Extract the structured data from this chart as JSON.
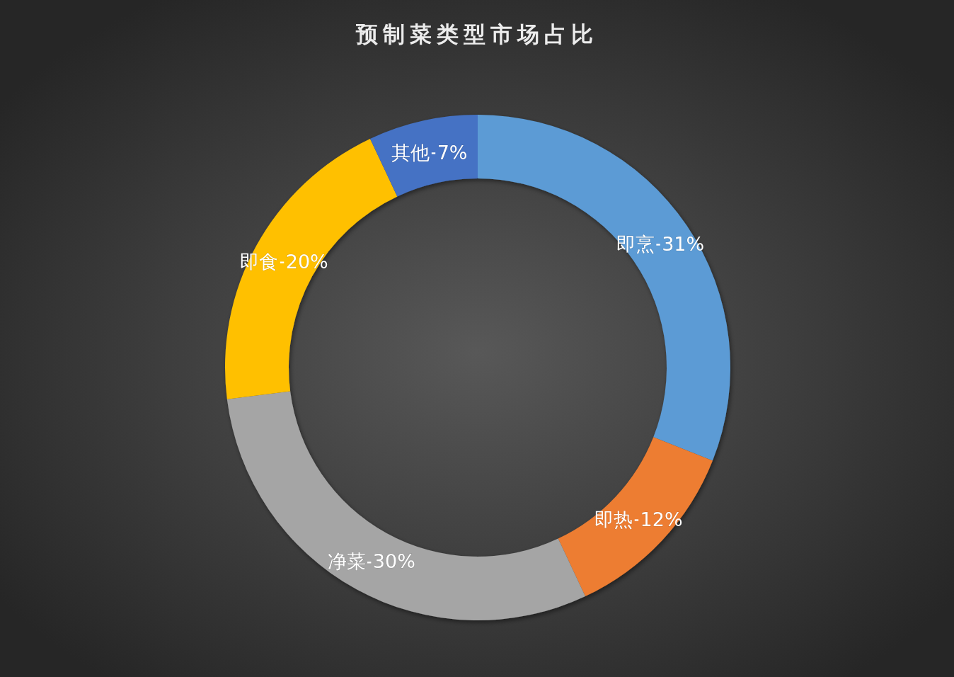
{
  "chart_data": {
    "type": "donut",
    "title": "预制菜类型市场占比",
    "categories": [
      "即烹",
      "即热",
      "净菜",
      "即食",
      "其他"
    ],
    "values": [
      31,
      12,
      30,
      20,
      7
    ],
    "colors": [
      "#5b9bd5",
      "#ed7d31",
      "#a5a5a5",
      "#ffc000",
      "#4472c4"
    ],
    "value_labels": [
      "31%",
      "12%",
      "30%",
      "20%",
      "7%"
    ],
    "legend": false
  }
}
